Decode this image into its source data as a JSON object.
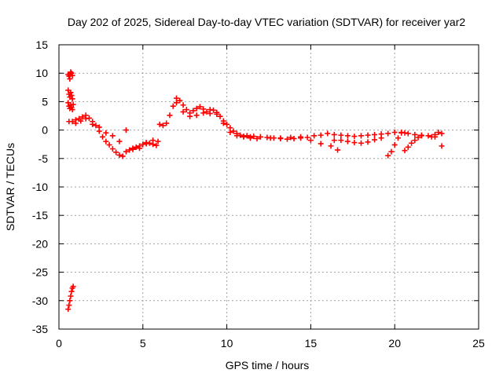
{
  "chart_data": {
    "type": "scatter",
    "title": "Day 202 of 2025, Sidereal Day-to-day VTEC variation (SDTVAR) for receiver yar2",
    "xlabel": "GPS time / hours",
    "ylabel": "SDTVAR / TECUs",
    "xlim": [
      0,
      25
    ],
    "ylim": [
      -35,
      15
    ],
    "xticks": [
      0,
      5,
      10,
      15,
      20,
      25
    ],
    "yticks": [
      15,
      10,
      5,
      0,
      -5,
      -10,
      -15,
      -20,
      -25,
      -30,
      -35
    ],
    "grid": true,
    "marker": "+",
    "series_color": "#ff0000",
    "series": [
      {
        "name": "SDTVAR",
        "x": [
          0.55,
          0.6,
          0.65,
          0.7,
          0.75,
          0.8,
          0.55,
          0.6,
          0.65,
          0.7,
          0.75,
          0.8,
          0.55,
          0.6,
          0.65,
          0.7,
          0.75,
          0.8,
          0.85,
          0.6,
          0.8,
          1.0,
          1.2,
          1.4,
          1.6,
          1.8,
          2.0,
          2.2,
          2.4,
          2.6,
          2.8,
          3.0,
          3.2,
          3.4,
          3.6,
          3.8,
          4.0,
          4.2,
          4.4,
          4.6,
          4.8,
          5.0,
          5.2,
          5.4,
          5.6,
          5.8,
          1.0,
          1.3,
          1.6,
          2.0,
          2.4,
          2.8,
          3.2,
          3.6,
          4.0,
          4.4,
          4.8,
          5.2,
          5.6,
          5.9,
          6.0,
          6.2,
          6.4,
          6.6,
          6.8,
          7.0,
          7.2,
          7.4,
          7.6,
          7.8,
          8.0,
          8.2,
          8.4,
          8.6,
          8.8,
          9.0,
          9.2,
          9.4,
          9.6,
          9.8,
          10.0,
          10.2,
          10.4,
          10.6,
          10.8,
          11.0,
          7.0,
          7.4,
          7.8,
          8.2,
          8.6,
          9.0,
          9.4,
          9.8,
          10.2,
          10.6,
          11.0,
          11.4,
          11.8,
          11.2,
          11.6,
          12.0,
          12.4,
          12.8,
          13.2,
          13.6,
          14.0,
          14.4,
          14.8,
          15.2,
          15.6,
          16.0,
          16.4,
          16.8,
          17.2,
          17.6,
          18.0,
          18.4,
          18.8,
          19.2,
          19.6,
          20.0,
          20.4,
          20.8,
          21.2,
          21.6,
          22.0,
          22.4,
          22.8,
          11.4,
          12.0,
          12.6,
          13.2,
          13.8,
          14.4,
          15.0,
          15.6,
          16.2,
          16.6,
          16.4,
          16.8,
          17.2,
          17.6,
          18.0,
          18.4,
          18.8,
          19.2,
          19.6,
          19.8,
          20.0,
          20.2,
          20.4,
          20.6,
          20.6,
          20.8,
          21.0,
          21.2,
          21.4,
          21.6,
          22.2,
          22.4,
          22.6,
          22.8,
          0.55,
          0.6,
          0.65,
          0.7,
          0.75,
          0.8,
          0.85
        ],
        "y": [
          9.8,
          9.5,
          9.0,
          10.2,
          10.0,
          9.6,
          7.0,
          6.3,
          5.8,
          6.6,
          6.1,
          5.5,
          4.8,
          4.2,
          3.8,
          4.4,
          4.0,
          3.6,
          4.5,
          1.5,
          1.5,
          1.8,
          2.0,
          2.3,
          2.6,
          2.1,
          1.5,
          0.8,
          -0.2,
          -1.2,
          -2.0,
          -2.6,
          -3.3,
          -3.9,
          -4.4,
          -4.6,
          -3.8,
          -3.5,
          -3.2,
          -3.0,
          -2.8,
          -2.5,
          -2.4,
          -2.3,
          -2.5,
          -2.7,
          1.2,
          1.6,
          2.0,
          1.0,
          0.5,
          -0.5,
          -1.0,
          -2.0,
          0.0,
          -3.4,
          -3.2,
          -2.2,
          -1.8,
          -2.0,
          1.0,
          0.8,
          1.2,
          2.6,
          4.2,
          5.6,
          5.2,
          4.4,
          3.6,
          3.0,
          3.4,
          3.8,
          4.1,
          3.7,
          3.2,
          2.9,
          3.5,
          3.1,
          2.4,
          1.6,
          1.0,
          0.4,
          -0.2,
          -0.6,
          -0.9,
          -1.1,
          4.8,
          3.2,
          2.4,
          2.6,
          3.0,
          3.6,
          2.8,
          1.2,
          -0.4,
          -1.0,
          -1.2,
          -1.4,
          -1.5,
          -1.0,
          -1.1,
          -1.2,
          -1.3,
          -1.4,
          -1.5,
          -1.6,
          -1.5,
          -1.4,
          -1.3,
          -1.0,
          -0.9,
          -0.6,
          -0.8,
          -0.9,
          -1.0,
          -1.1,
          -1.0,
          -0.9,
          -0.8,
          -0.7,
          -0.6,
          -0.4,
          -0.5,
          -0.6,
          -0.8,
          -1.0,
          -1.0,
          -1.2,
          -0.6,
          -1.2,
          -1.2,
          -1.4,
          -1.4,
          -1.3,
          -1.2,
          -1.8,
          -2.4,
          -2.8,
          -3.5,
          -1.8,
          -1.8,
          -2.0,
          -2.2,
          -2.3,
          -2.1,
          -1.7,
          -1.4,
          -4.5,
          -3.8,
          -2.6,
          -1.4,
          -0.4,
          -0.5,
          -3.6,
          -3.0,
          -2.3,
          -1.8,
          -1.3,
          -0.9,
          -1.2,
          -0.8,
          -0.4,
          -2.8,
          -31.5,
          -30.8,
          -30.0,
          -29.2,
          -28.4,
          -27.8,
          -27.5
        ]
      }
    ]
  }
}
